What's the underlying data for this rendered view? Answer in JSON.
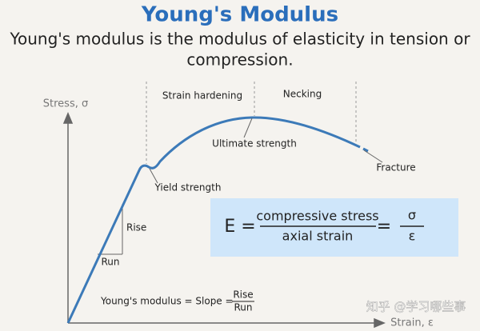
{
  "header": {
    "title": "Young's Modulus",
    "subtitle_lines": [
      "Young's modulus is the modulus of elasticity in tension or",
      "compression."
    ]
  },
  "diagram": {
    "y_axis_label": "Stress, σ",
    "x_axis_label": "Strain, ε",
    "regions": [
      "Strain hardening",
      "Necking"
    ],
    "points": {
      "ultimate": "Ultimate strength",
      "fracture": "Fracture",
      "yield": "Yield strength"
    },
    "triangle": {
      "rise": "Rise",
      "run": "Run"
    },
    "formula": {
      "lhs": "E =",
      "numerator": "compressive stress",
      "denominator": "axial strain",
      "equals": "=",
      "sigma": "σ",
      "epsilon": "ε"
    },
    "slope": {
      "text": "Young's modulus = Slope =",
      "numerator": "Rise",
      "denominator": "Run"
    }
  },
  "watermark": "知乎 @学习哪些事"
}
